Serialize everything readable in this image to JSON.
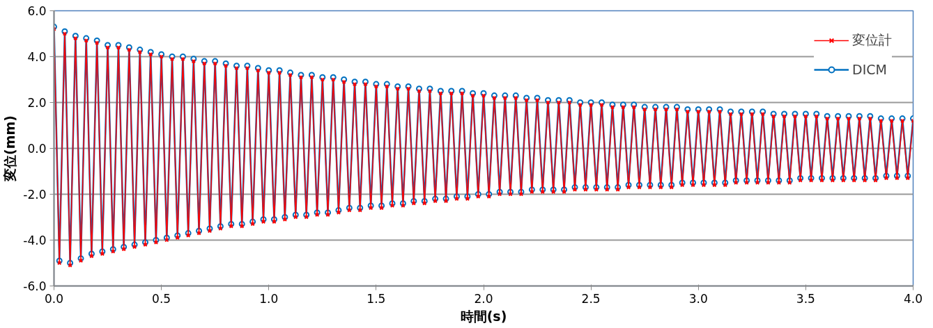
{
  "chart_data": {
    "type": "line",
    "xlabel": "時間(s)",
    "ylabel": "変位(mm)",
    "xlim": [
      0,
      4
    ],
    "ylim": [
      -6,
      6
    ],
    "xticks": [
      {
        "value": 0,
        "label": "0.0"
      },
      {
        "value": 0.5,
        "label": "0.5"
      },
      {
        "value": 1,
        "label": "1.0"
      },
      {
        "value": 1.5,
        "label": "1.5"
      },
      {
        "value": 2,
        "label": "2.0"
      },
      {
        "value": 2.5,
        "label": "2.5"
      },
      {
        "value": 3,
        "label": "3.0"
      },
      {
        "value": 3.5,
        "label": "3.5"
      },
      {
        "value": 4,
        "label": "4.0"
      }
    ],
    "yticks": [
      {
        "value": -6,
        "label": "-6.0"
      },
      {
        "value": -4,
        "label": "-4.0"
      },
      {
        "value": -2,
        "label": "-2.0"
      },
      {
        "value": 0,
        "label": "0.0"
      },
      {
        "value": 2,
        "label": "2.0"
      },
      {
        "value": 4,
        "label": "4.0"
      },
      {
        "value": 6,
        "label": "6.0"
      }
    ],
    "grid": "y",
    "legend": "top right",
    "x": [
      0,
      0.025,
      0.05,
      0.075,
      0.1,
      0.125,
      0.15,
      0.175,
      0.2,
      0.225,
      0.25,
      0.275,
      0.3,
      0.325,
      0.35,
      0.375,
      0.4,
      0.425,
      0.45,
      0.475,
      0.5,
      0.525,
      0.55,
      0.575,
      0.6,
      0.625,
      0.65,
      0.675,
      0.7,
      0.725,
      0.75,
      0.775,
      0.8,
      0.825,
      0.85,
      0.875,
      0.9,
      0.925,
      0.95,
      0.975,
      1,
      1.025,
      1.05,
      1.075,
      1.1,
      1.125,
      1.15,
      1.175,
      1.2,
      1.225,
      1.25,
      1.275,
      1.3,
      1.325,
      1.35,
      1.375,
      1.4,
      1.425,
      1.45,
      1.475,
      1.5,
      1.525,
      1.55,
      1.575,
      1.6,
      1.625,
      1.65,
      1.675,
      1.7,
      1.725,
      1.75,
      1.775,
      1.8,
      1.825,
      1.85,
      1.875,
      1.9,
      1.925,
      1.95,
      1.975,
      2,
      2.025,
      2.05,
      2.075,
      2.1,
      2.125,
      2.15,
      2.175,
      2.2,
      2.225,
      2.25,
      2.275,
      2.3,
      2.325,
      2.35,
      2.375,
      2.4,
      2.425,
      2.45,
      2.475,
      2.5,
      2.525,
      2.55,
      2.575,
      2.6,
      2.625,
      2.65,
      2.675,
      2.7,
      2.725,
      2.75,
      2.775,
      2.8,
      2.825,
      2.85,
      2.875,
      2.9,
      2.925,
      2.95,
      2.975,
      3,
      3.025,
      3.05,
      3.075,
      3.1,
      3.125,
      3.15,
      3.175,
      3.2,
      3.225,
      3.25,
      3.275,
      3.3,
      3.325,
      3.35,
      3.375,
      3.4,
      3.425,
      3.45,
      3.475,
      3.5,
      3.525,
      3.55,
      3.575,
      3.6,
      3.625,
      3.65,
      3.675,
      3.7,
      3.725,
      3.75,
      3.775,
      3.8,
      3.825,
      3.85,
      3.875,
      3.9,
      3.925,
      3.95,
      3.975,
      4
    ],
    "series": [
      {
        "name": "変位計",
        "color": "#ff0000",
        "marker": "cross",
        "values": [
          5.2,
          -5.0,
          5.0,
          -5.1,
          4.8,
          -4.9,
          4.7,
          -4.7,
          4.6,
          -4.6,
          4.4,
          -4.5,
          4.4,
          -4.4,
          4.3,
          -4.3,
          4.2,
          -4.2,
          4.1,
          -4.1,
          4.0,
          -4.0,
          3.9,
          -3.9,
          3.9,
          -3.8,
          3.8,
          -3.7,
          3.7,
          -3.6,
          3.7,
          -3.5,
          3.6,
          -3.4,
          3.5,
          -3.4,
          3.5,
          -3.3,
          3.4,
          -3.2,
          3.3,
          -3.2,
          3.3,
          -3.1,
          3.2,
          -3.0,
          3.1,
          -3.0,
          3.1,
          -2.9,
          3.0,
          -2.9,
          3.0,
          -2.8,
          2.9,
          -2.7,
          2.8,
          -2.7,
          2.8,
          -2.6,
          2.7,
          -2.6,
          2.7,
          -2.5,
          2.6,
          -2.5,
          2.6,
          -2.4,
          2.5,
          -2.4,
          2.5,
          -2.3,
          2.4,
          -2.3,
          2.4,
          -2.2,
          2.4,
          -2.2,
          2.3,
          -2.1,
          2.3,
          -2.1,
          2.2,
          -2.0,
          2.2,
          -2.0,
          2.2,
          -2.0,
          2.1,
          -1.9,
          2.1,
          -1.9,
          2.0,
          -1.9,
          2.0,
          -1.9,
          2.0,
          -1.8,
          1.9,
          -1.8,
          1.9,
          -1.8,
          1.9,
          -1.8,
          1.8,
          -1.8,
          1.8,
          -1.7,
          1.8,
          -1.7,
          1.7,
          -1.7,
          1.7,
          -1.7,
          1.7,
          -1.7,
          1.7,
          -1.6,
          1.6,
          -1.6,
          1.6,
          -1.6,
          1.6,
          -1.6,
          1.6,
          -1.6,
          1.5,
          -1.5,
          1.5,
          -1.5,
          1.5,
          -1.5,
          1.5,
          -1.5,
          1.4,
          -1.5,
          1.4,
          -1.5,
          1.4,
          -1.4,
          1.4,
          -1.4,
          1.4,
          -1.4,
          1.3,
          -1.4,
          1.3,
          -1.4,
          1.3,
          -1.4,
          1.3,
          -1.4,
          1.3,
          -1.4,
          1.2,
          -1.3,
          1.2,
          -1.3,
          1.2,
          -1.3,
          1.2
        ]
      },
      {
        "name": "DICM",
        "color": "#0070c0",
        "marker": "circle",
        "values": [
          5.3,
          -4.9,
          5.1,
          -5.0,
          4.9,
          -4.8,
          4.8,
          -4.6,
          4.7,
          -4.5,
          4.5,
          -4.4,
          4.5,
          -4.3,
          4.4,
          -4.2,
          4.3,
          -4.1,
          4.2,
          -4.0,
          4.1,
          -3.9,
          4.0,
          -3.8,
          4.0,
          -3.7,
          3.9,
          -3.6,
          3.8,
          -3.5,
          3.8,
          -3.4,
          3.7,
          -3.3,
          3.6,
          -3.3,
          3.6,
          -3.2,
          3.5,
          -3.1,
          3.4,
          -3.1,
          3.4,
          -3.0,
          3.3,
          -2.9,
          3.2,
          -2.9,
          3.2,
          -2.8,
          3.1,
          -2.8,
          3.1,
          -2.7,
          3.0,
          -2.6,
          2.9,
          -2.6,
          2.9,
          -2.5,
          2.8,
          -2.5,
          2.8,
          -2.4,
          2.7,
          -2.4,
          2.7,
          -2.3,
          2.6,
          -2.3,
          2.6,
          -2.2,
          2.5,
          -2.2,
          2.5,
          -2.1,
          2.5,
          -2.1,
          2.4,
          -2.0,
          2.4,
          -2.0,
          2.3,
          -1.9,
          2.3,
          -1.9,
          2.3,
          -1.9,
          2.2,
          -1.8,
          2.2,
          -1.8,
          2.1,
          -1.8,
          2.1,
          -1.8,
          2.1,
          -1.7,
          2.0,
          -1.7,
          2.0,
          -1.7,
          2.0,
          -1.7,
          1.9,
          -1.7,
          1.9,
          -1.6,
          1.9,
          -1.6,
          1.8,
          -1.6,
          1.8,
          -1.6,
          1.8,
          -1.6,
          1.8,
          -1.5,
          1.7,
          -1.5,
          1.7,
          -1.5,
          1.7,
          -1.5,
          1.7,
          -1.5,
          1.6,
          -1.4,
          1.6,
          -1.4,
          1.6,
          -1.4,
          1.6,
          -1.4,
          1.5,
          -1.4,
          1.5,
          -1.4,
          1.5,
          -1.3,
          1.5,
          -1.3,
          1.5,
          -1.3,
          1.4,
          -1.3,
          1.4,
          -1.3,
          1.4,
          -1.3,
          1.4,
          -1.3,
          1.4,
          -1.3,
          1.3,
          -1.2,
          1.3,
          -1.2,
          1.3,
          -1.2,
          1.3
        ]
      }
    ]
  }
}
